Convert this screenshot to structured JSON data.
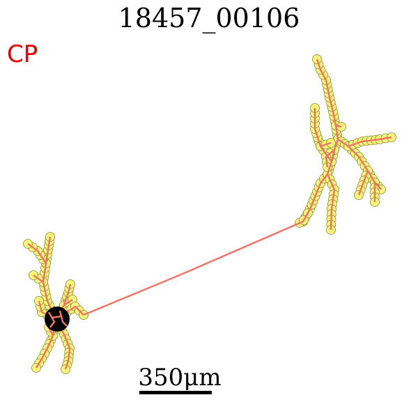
{
  "title": "18457_00106",
  "region_label": "CP",
  "scale_bar": {
    "label": "350μm"
  },
  "colors": {
    "neurite": "#f07468",
    "node_fill": "#f5f57a",
    "node_stroke": "#8a8a3a",
    "soma": "#000000",
    "region_label": "#e60000"
  },
  "structure": {
    "soma": "black filled soma",
    "axon": "long projection to upper-right arbor",
    "arbors": [
      "local dendritic arbor (lower-left)",
      "distal axonal arbor (upper-right)"
    ]
  }
}
